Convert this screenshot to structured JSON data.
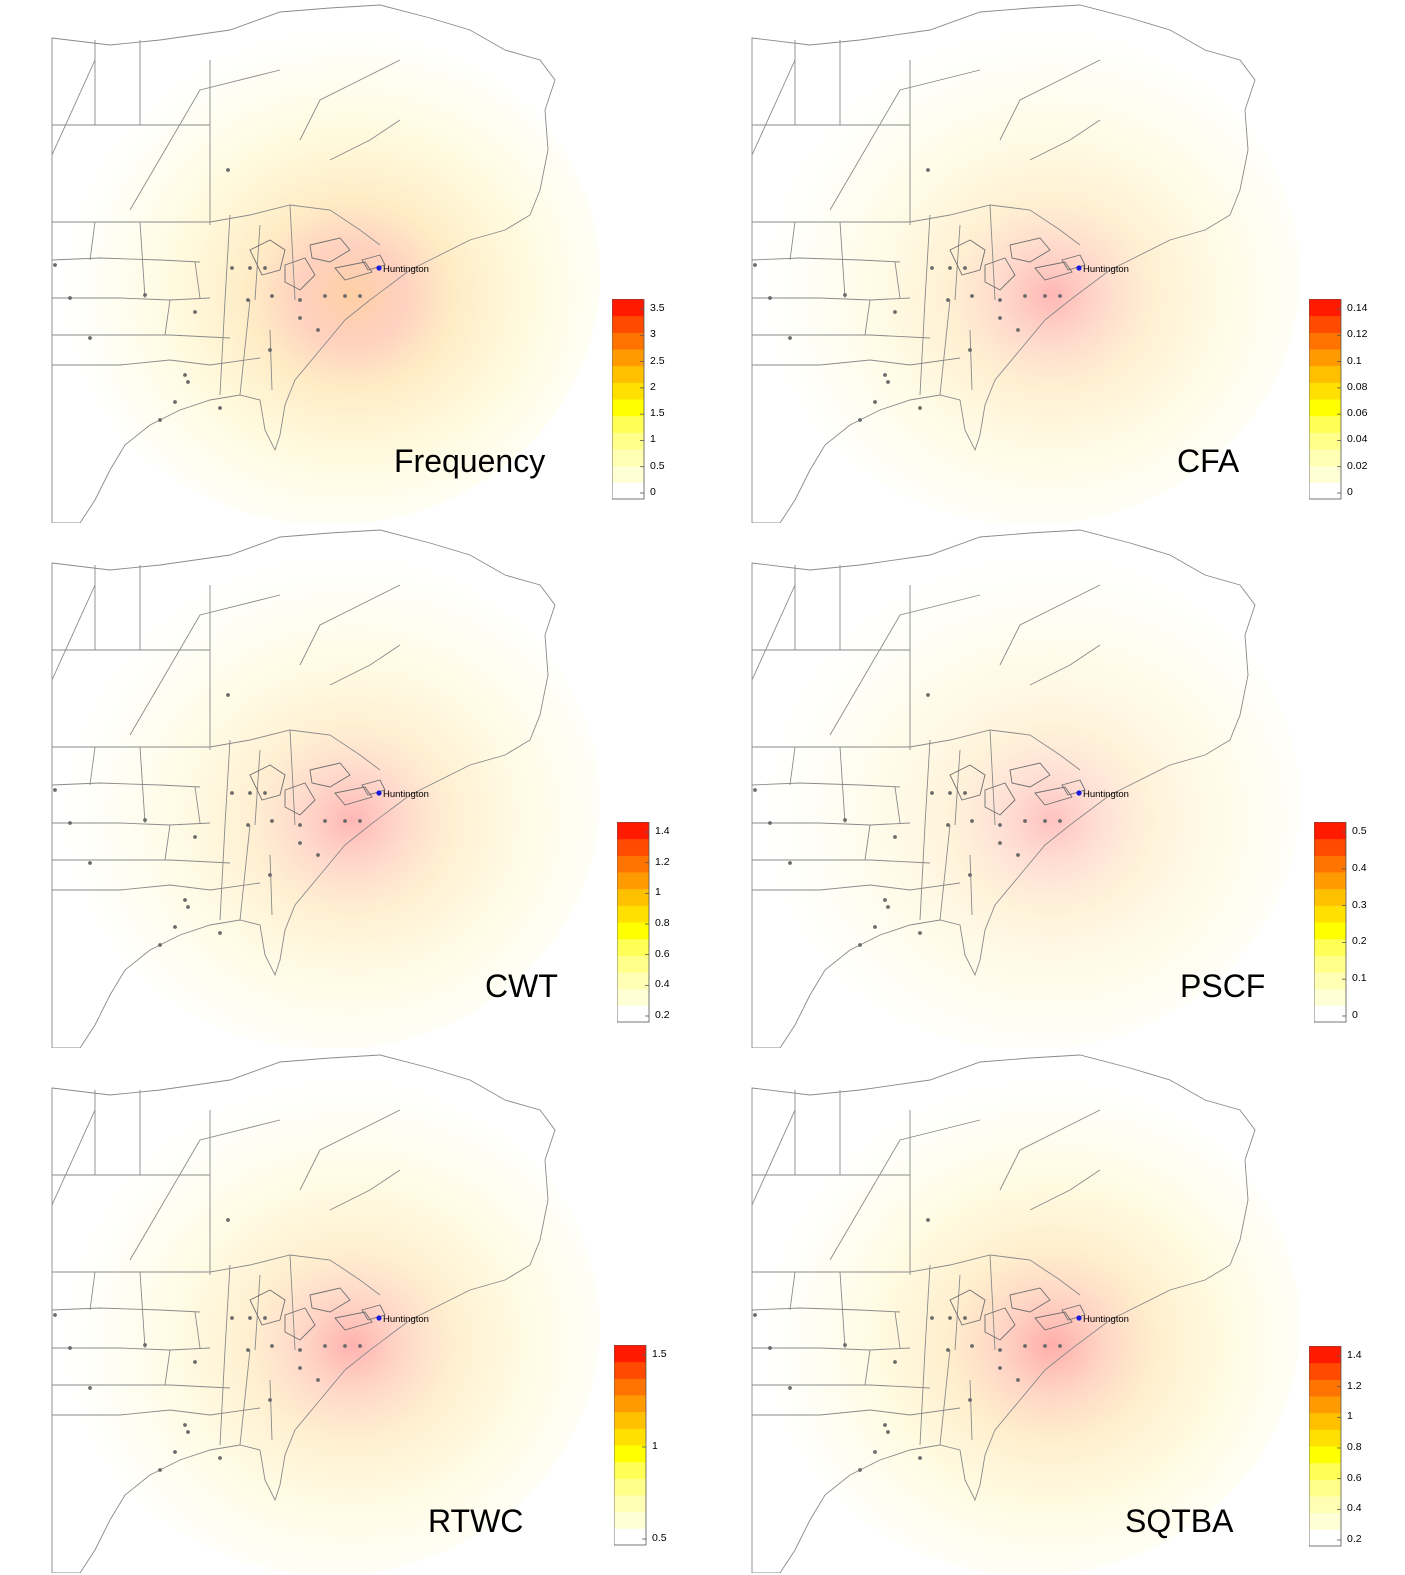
{
  "site": {
    "name": "Huntington",
    "marker_color": "#1a1adf"
  },
  "colorscale": [
    "#ffffff",
    "#ffffd6",
    "#ffffb3",
    "#ffff8a",
    "#ffff55",
    "#ffff00",
    "#ffe000",
    "#ffc000",
    "#ff9b00",
    "#ff7400",
    "#ff4a00",
    "#ff1a00"
  ],
  "panels": [
    {
      "label": "Frequency",
      "colorbar": {
        "ticks": [
          "3.5",
          "3",
          "2.5",
          "2",
          "1.5",
          "1",
          "0.5",
          "0"
        ]
      },
      "intensity": 0.55,
      "red_core": 0.2
    },
    {
      "label": "CFA",
      "colorbar": {
        "ticks": [
          "0.14",
          "0.12",
          "0.1",
          "0.08",
          "0.06",
          "0.04",
          "0.02",
          "0"
        ]
      },
      "intensity": 0.35,
      "red_core": 0.9
    },
    {
      "label": "CWT",
      "colorbar": {
        "ticks": [
          "1.4",
          "1.2",
          "1",
          "0.8",
          "0.6",
          "0.4",
          "0.2"
        ]
      },
      "intensity": 0.35,
      "red_core": 1.0
    },
    {
      "label": "PSCF",
      "colorbar": {
        "ticks": [
          "0.5",
          "0.4",
          "0.3",
          "0.2",
          "0.1",
          "0"
        ]
      },
      "intensity": 0.22,
      "red_core": 0.7
    },
    {
      "label": "RTWC",
      "colorbar": {
        "ticks": [
          "1.5",
          "1",
          "0.5"
        ]
      },
      "intensity": 0.4,
      "red_core": 0.85
    },
    {
      "label": "SQTBA",
      "colorbar": {
        "ticks": [
          "1.4",
          "1.2",
          "1",
          "0.8",
          "0.6",
          "0.4",
          "0.2"
        ]
      },
      "intensity": 0.45,
      "red_core": 0.9
    }
  ]
}
